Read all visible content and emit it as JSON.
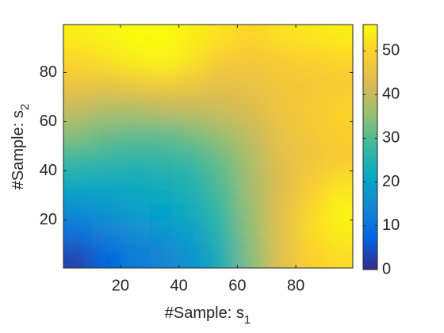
{
  "chart_data": {
    "type": "heatmap",
    "xlabel": [
      "#Sample: s",
      "1"
    ],
    "ylabel": [
      "#Sample: s",
      "2"
    ],
    "x": [
      5,
      15,
      25,
      35,
      45,
      55,
      65,
      75,
      85,
      95
    ],
    "y": [
      5,
      15,
      25,
      35,
      45,
      55,
      65,
      75,
      85,
      95
    ],
    "z": [
      [
        3,
        8,
        12,
        14,
        17,
        24,
        34,
        44,
        49,
        51
      ],
      [
        10,
        13,
        15,
        17,
        20,
        26,
        35,
        44,
        51,
        54
      ],
      [
        16,
        18,
        20,
        21,
        23,
        28,
        36,
        44,
        50,
        55
      ],
      [
        22,
        22,
        22,
        23,
        25,
        30,
        37,
        43,
        48,
        52
      ],
      [
        28,
        27,
        26,
        27,
        28,
        32,
        38,
        44,
        46,
        48
      ],
      [
        34,
        32,
        31,
        31,
        33,
        36,
        40,
        45,
        47,
        49
      ],
      [
        40,
        38,
        38,
        39,
        40,
        41,
        43,
        46,
        48,
        50
      ],
      [
        46,
        45,
        46,
        47,
        46,
        44,
        45,
        47,
        47,
        48
      ],
      [
        50,
        52,
        54,
        55,
        52,
        48,
        47,
        48,
        49,
        50
      ],
      [
        54,
        55,
        56,
        56,
        54,
        52,
        50,
        52,
        53,
        54
      ]
    ],
    "xlim": [
      0.5,
      99.5
    ],
    "ylim": [
      0.5,
      99.5
    ],
    "xticks": [
      20,
      40,
      60,
      80
    ],
    "yticks": [
      20,
      40,
      60,
      80
    ],
    "clim": [
      0,
      56
    ],
    "cticks": [
      0,
      10,
      20,
      30,
      40,
      50
    ],
    "colormap": [
      "#352a87",
      "#0363e1",
      "#1485d4",
      "#06a7c6",
      "#38b99e",
      "#92bf73",
      "#d9ba56",
      "#fcce2e",
      "#f9fb0e"
    ]
  }
}
